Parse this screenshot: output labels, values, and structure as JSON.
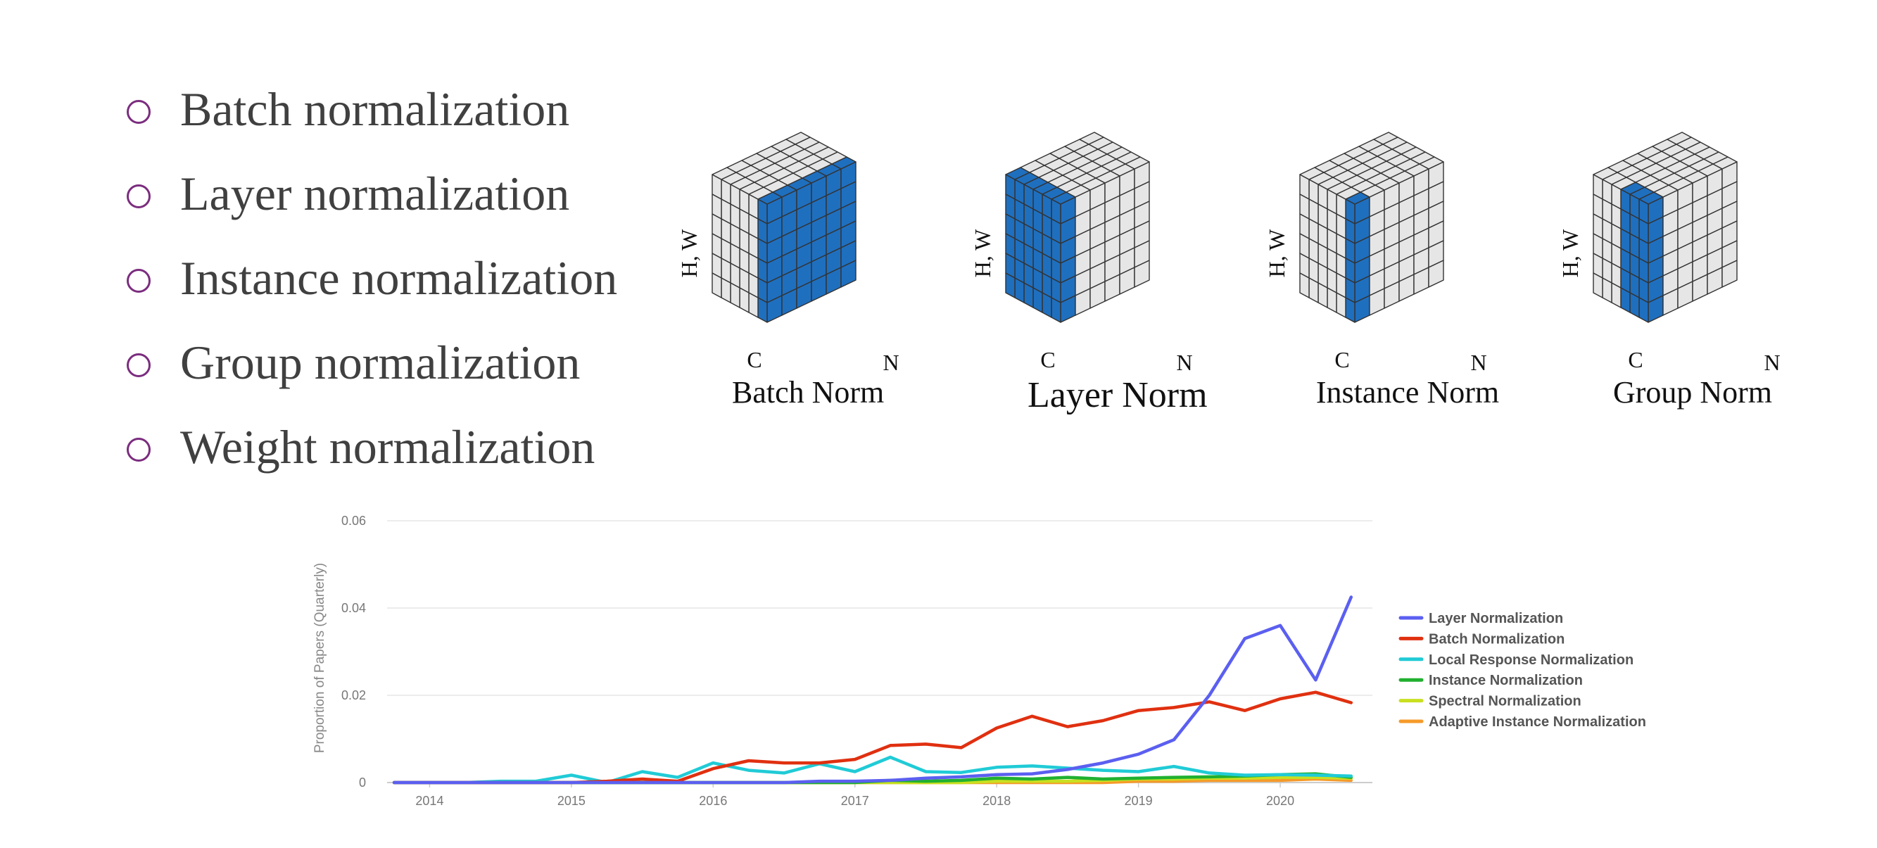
{
  "bullets": [
    "Batch normalization",
    "Layer normalization",
    "Instance normalization",
    "Group normalization",
    "Weight normalization"
  ],
  "cubes": {
    "axis_labels": {
      "hw": "H, W",
      "c": "C",
      "n": "N"
    },
    "colors": {
      "highlight": "#1f6fbf",
      "base": "#e6e6e6",
      "edge": "#333333"
    },
    "items": [
      {
        "caption": "Batch Norm",
        "mode": "batch"
      },
      {
        "caption": "Layer Norm",
        "mode": "layer"
      },
      {
        "caption": "Instance Norm",
        "mode": "instance"
      },
      {
        "caption": "Group Norm",
        "mode": "group"
      }
    ]
  },
  "chart_data": {
    "type": "line",
    "title": "",
    "xlabel": "",
    "ylabel": "Proportion of Papers (Quarterly)",
    "xlim": [
      2013.7,
      2020.65
    ],
    "ylim": [
      0,
      0.06
    ],
    "x_ticks": [
      "2014",
      "2015",
      "2016",
      "2017",
      "2018",
      "2019",
      "2020"
    ],
    "y_ticks": [
      "0",
      "0.02",
      "0.04",
      "0.06"
    ],
    "grid": true,
    "legend_position": "right",
    "x": [
      2013.75,
      2014.0,
      2014.25,
      2014.5,
      2014.75,
      2015.0,
      2015.25,
      2015.5,
      2015.75,
      2016.0,
      2016.25,
      2016.5,
      2016.75,
      2017.0,
      2017.25,
      2017.5,
      2017.75,
      2018.0,
      2018.25,
      2018.5,
      2018.75,
      2019.0,
      2019.25,
      2019.5,
      2019.75,
      2020.0,
      2020.25,
      2020.5
    ],
    "series": [
      {
        "name": "Layer Normalization",
        "color": "#5b5ff0",
        "values": [
          0,
          0,
          0,
          0,
          0,
          0,
          0,
          0,
          0,
          0,
          0,
          0,
          0.0003,
          0.0003,
          0.0005,
          0.001,
          0.0013,
          0.0018,
          0.002,
          0.003,
          0.0045,
          0.0065,
          0.0098,
          0.02,
          0.033,
          0.036,
          0.0235,
          0.0425
        ]
      },
      {
        "name": "Batch Normalization",
        "color": "#e03010",
        "values": [
          0,
          0,
          0,
          0,
          0,
          0,
          0.0003,
          0.0008,
          0.0003,
          0.0032,
          0.005,
          0.0045,
          0.0045,
          0.0053,
          0.0085,
          0.0088,
          0.008,
          0.0125,
          0.0152,
          0.0128,
          0.0142,
          0.0165,
          0.0172,
          0.0185,
          0.0165,
          0.0192,
          0.0207,
          0.0183
        ]
      },
      {
        "name": "Local Response Normalization",
        "color": "#20cbd6",
        "values": [
          0,
          0,
          0,
          0.0003,
          0.0003,
          0.0017,
          0,
          0.0025,
          0.0012,
          0.0045,
          0.0028,
          0.0022,
          0.0043,
          0.0025,
          0.0058,
          0.0025,
          0.0023,
          0.0035,
          0.0038,
          0.0033,
          0.0028,
          0.0025,
          0.0037,
          0.0022,
          0.0017,
          0.0018,
          0.0017,
          0.0015
        ]
      },
      {
        "name": "Instance Normalization",
        "color": "#20b030",
        "values": [
          0,
          0,
          0,
          0,
          0,
          0,
          0,
          0,
          0,
          0,
          0,
          0,
          0,
          0,
          0.0005,
          0.0003,
          0.0005,
          0.001,
          0.0008,
          0.0012,
          0.0008,
          0.001,
          0.0012,
          0.0013,
          0.0015,
          0.0018,
          0.002,
          0.0012
        ]
      },
      {
        "name": "Spectral Normalization",
        "color": "#c8e020",
        "values": [
          0,
          0,
          0,
          0,
          0,
          0,
          0,
          0,
          0,
          0,
          0,
          0,
          0,
          0,
          0,
          0,
          0,
          0.0003,
          0.0003,
          0.0003,
          0.0005,
          0.0008,
          0.0008,
          0.001,
          0.001,
          0.0012,
          0.0012,
          0.001
        ]
      },
      {
        "name": "Adaptive Instance Normalization",
        "color": "#f59a2a",
        "values": [
          0,
          0,
          0,
          0,
          0,
          0,
          0,
          0,
          0,
          0,
          0,
          0,
          0,
          0,
          0,
          0,
          0,
          0,
          0,
          0,
          0,
          0.0003,
          0.0003,
          0.0005,
          0.0005,
          0.0005,
          0.0008,
          0.0005
        ]
      }
    ]
  }
}
